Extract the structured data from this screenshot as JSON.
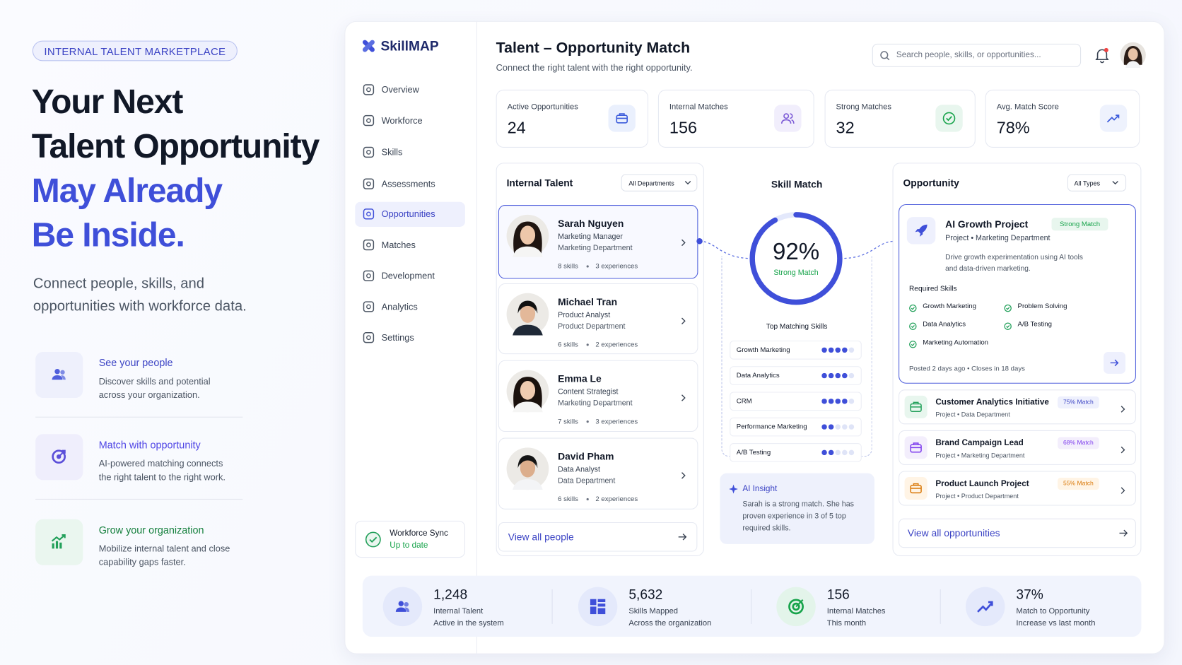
{
  "hero": {
    "badge": "INTERNAL TALENT MARKETPLACE",
    "title_lines": [
      "Your Next",
      "Talent Opportunity"
    ],
    "highlight_lines": [
      "May Already",
      "Be Inside."
    ],
    "subtitle": "Connect people, skills, and opportunities with workforce data.",
    "features": [
      {
        "title": "See your people",
        "text": "Discover skills and potential across your organization."
      },
      {
        "title": "Match with opportunity",
        "text": "AI-powered matching connects the right talent to the right work."
      },
      {
        "title": "Grow your organization",
        "text": "Mobilize internal talent and close capability gaps faster."
      }
    ]
  },
  "app": {
    "brand": "SkillMAP",
    "nav": [
      "Overview",
      "Workforce",
      "Skills",
      "Assessments",
      "Opportunities",
      "Matches",
      "Development",
      "Analytics",
      "Settings"
    ],
    "sync": {
      "title": "Workforce Sync",
      "status": "Up to date"
    },
    "header": {
      "title": "Talent – Opportunity Match",
      "subtitle": "Connect the right talent with the right opportunity.",
      "search_placeholder": "Search people, skills, or opportunities..."
    },
    "kpis": [
      {
        "label": "Active Opportunities",
        "value": "24"
      },
      {
        "label": "Internal Matches",
        "value": "156"
      },
      {
        "label": "Strong Matches",
        "value": "32"
      },
      {
        "label": "Avg. Match Score",
        "value": "78%"
      }
    ],
    "talent": {
      "title": "Internal Talent",
      "filter": "All Departments",
      "people": [
        {
          "name": "Sarah Nguyen",
          "role": "Marketing Manager",
          "department": "Marketing Department",
          "skills": "8 skills",
          "experiences": "3 experiences"
        },
        {
          "name": "Michael Tran",
          "role": "Product Analyst",
          "department": "Product Department",
          "skills": "6 skills",
          "experiences": "2 experiences"
        },
        {
          "name": "Emma Le",
          "role": "Content Strategist",
          "department": "Marketing Department",
          "skills": "7 skills",
          "experiences": "3 experiences"
        },
        {
          "name": "David Pham",
          "role": "Data Analyst",
          "department": "Data Department",
          "skills": "6 skills",
          "experiences": "2 experiences"
        }
      ],
      "view_all": "View all people"
    },
    "skill_match": {
      "title": "Skill Match",
      "score": {
        "value": 92,
        "label": "92%"
      },
      "status": "Strong Match",
      "top_title": "Top Matching Skills",
      "skills": [
        {
          "name": "Growth Marketing",
          "level": 4
        },
        {
          "name": "Data Analytics",
          "level": 4
        },
        {
          "name": "CRM",
          "level": 4
        },
        {
          "name": "Performance Marketing",
          "level": 2
        },
        {
          "name": "A/B Testing",
          "level": 2
        }
      ],
      "insight": {
        "title": "AI Insight",
        "text": "Sarah is a strong match. She has proven experience in 3 of 5 top required skills."
      }
    },
    "opportunity": {
      "title": "Opportunity",
      "filter": "All Types",
      "featured": {
        "title": "AI Growth Project",
        "badge": "Strong Match",
        "meta": "Project  •  Marketing Department",
        "description": "Drive growth experimentation using AI tools and data-driven marketing.",
        "required_title": "Required Skills",
        "skills": [
          "Growth Marketing",
          "Problem Solving",
          "Data Analytics",
          "A/B Testing",
          "Marketing Automation"
        ],
        "footer": "Posted 2 days ago   •   Closes in 18 days"
      },
      "items": [
        {
          "title": "Customer Analytics Initiative",
          "meta": "Project  •  Data Department",
          "badge": "75% Match"
        },
        {
          "title": "Brand Campaign Lead",
          "meta": "Project  •  Marketing Department",
          "badge": "68% Match"
        },
        {
          "title": "Product Launch Project",
          "meta": "Project  •  Product Department",
          "badge": "55% Match"
        }
      ],
      "view_all": "View all opportunities"
    },
    "stats": [
      {
        "value": "1,248",
        "label": "Internal Talent",
        "sub": "Active in the system"
      },
      {
        "value": "5,632",
        "label": "Skills Mapped",
        "sub": "Across the organization"
      },
      {
        "value": "156",
        "label": "Internal Matches",
        "sub": "This month"
      },
      {
        "value": "37%",
        "label": "Match to Opportunity",
        "sub": "Increase vs last month"
      }
    ]
  }
}
